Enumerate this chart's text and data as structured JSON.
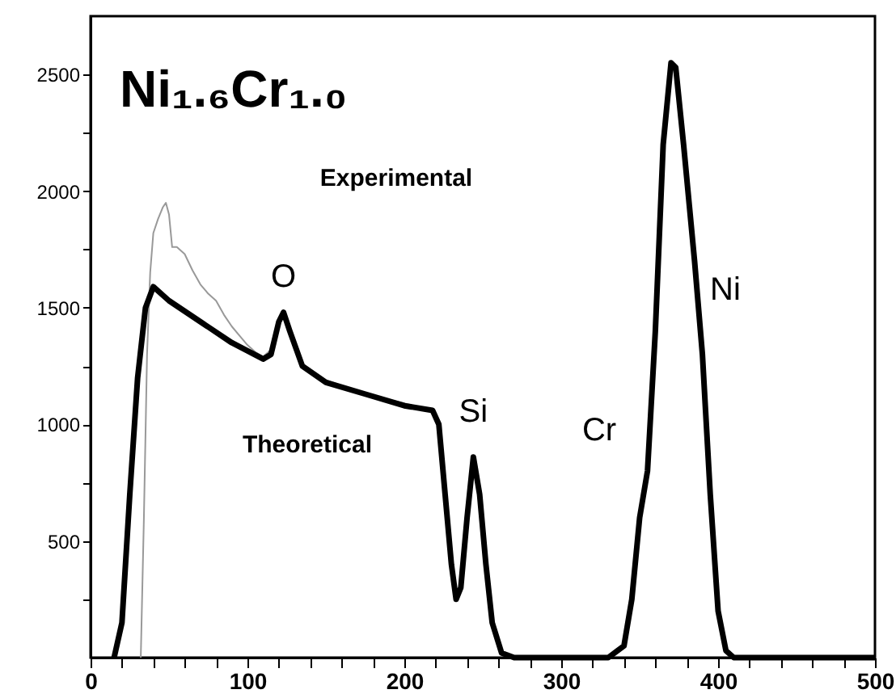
{
  "chart_data": {
    "type": "line",
    "title": "Ni₁.₆Cr₁.₀",
    "xlim": [
      0,
      500
    ],
    "ylim": [
      0,
      2750
    ],
    "xticks": [
      0,
      {
        "value": 20,
        "label": null
      },
      {
        "value": 40,
        "label": null
      },
      {
        "value": 60,
        "label": null
      },
      {
        "value": 80,
        "label": null
      },
      100,
      {
        "value": 120,
        "label": null
      },
      {
        "value": 140,
        "label": null
      },
      {
        "value": 160,
        "label": null
      },
      {
        "value": 180,
        "label": null
      },
      200,
      {
        "value": 220,
        "label": null
      },
      {
        "value": 240,
        "label": null
      },
      {
        "value": 260,
        "label": null
      },
      {
        "value": 280,
        "label": null
      },
      300,
      {
        "value": 320,
        "label": null
      },
      {
        "value": 340,
        "label": null
      },
      {
        "value": 360,
        "label": null
      },
      {
        "value": 380,
        "label": null
      },
      400,
      {
        "value": 420,
        "label": null
      },
      {
        "value": 440,
        "label": null
      },
      {
        "value": 460,
        "label": null
      },
      {
        "value": 480,
        "label": null
      },
      500
    ],
    "yticks": [
      {
        "value": 250,
        "label": null
      },
      500,
      {
        "value": 750,
        "label": null
      },
      1000,
      {
        "value": 1250,
        "label": null
      },
      1500,
      {
        "value": 1750,
        "label": null
      },
      2000,
      {
        "value": 2250,
        "label": null
      },
      2500
    ],
    "grid": false,
    "marker": "none",
    "line_style": "solid",
    "series": [
      {
        "color": "#999999",
        "x": [
          32,
          34,
          36,
          38,
          40,
          43,
          46,
          48,
          50,
          52,
          55,
          60,
          65,
          70,
          75,
          80,
          85,
          90,
          95,
          100,
          105,
          110,
          115,
          120,
          123,
          127,
          135,
          150,
          175,
          200,
          218
        ],
        "values": [
          0,
          600,
          1300,
          1650,
          1820,
          1880,
          1930,
          1950,
          1900,
          1760,
          1760,
          1730,
          1660,
          1600,
          1560,
          1530,
          1470,
          1420,
          1380,
          1340,
          1310,
          1290,
          1320,
          1450,
          1490,
          1410,
          1260,
          1190,
          1130,
          1090,
          1060
        ]
      },
      {
        "color": "#000000",
        "x": [
          15,
          20,
          25,
          30,
          35,
          40,
          50,
          70,
          90,
          110,
          115,
          120,
          123,
          127,
          135,
          150,
          175,
          200,
          218,
          222,
          226,
          230,
          233,
          236,
          240,
          244,
          248,
          252,
          256,
          262,
          270,
          330,
          340,
          345,
          350,
          355,
          360,
          365,
          370,
          373,
          378,
          385,
          390,
          395,
          400,
          405,
          410,
          500
        ],
        "values": [
          0,
          150,
          700,
          1200,
          1500,
          1590,
          1530,
          1440,
          1350,
          1280,
          1300,
          1440,
          1480,
          1400,
          1250,
          1180,
          1130,
          1080,
          1060,
          1000,
          700,
          400,
          250,
          300,
          600,
          860,
          700,
          400,
          150,
          20,
          0,
          0,
          50,
          250,
          600,
          800,
          1400,
          2200,
          2550,
          2530,
          2200,
          1700,
          1300,
          700,
          200,
          30,
          0,
          0
        ]
      }
    ],
    "annotations": [
      "Experimental",
      "Theoretical",
      {
        "text": "O",
        "x": 123,
        "y": 1480
      },
      {
        "text": "Si",
        "x": 244,
        "y": 860
      },
      {
        "text": "Cr",
        "x": 350,
        "y": 600
      },
      {
        "text": "Ni",
        "x": 385,
        "y": 1700
      }
    ]
  }
}
